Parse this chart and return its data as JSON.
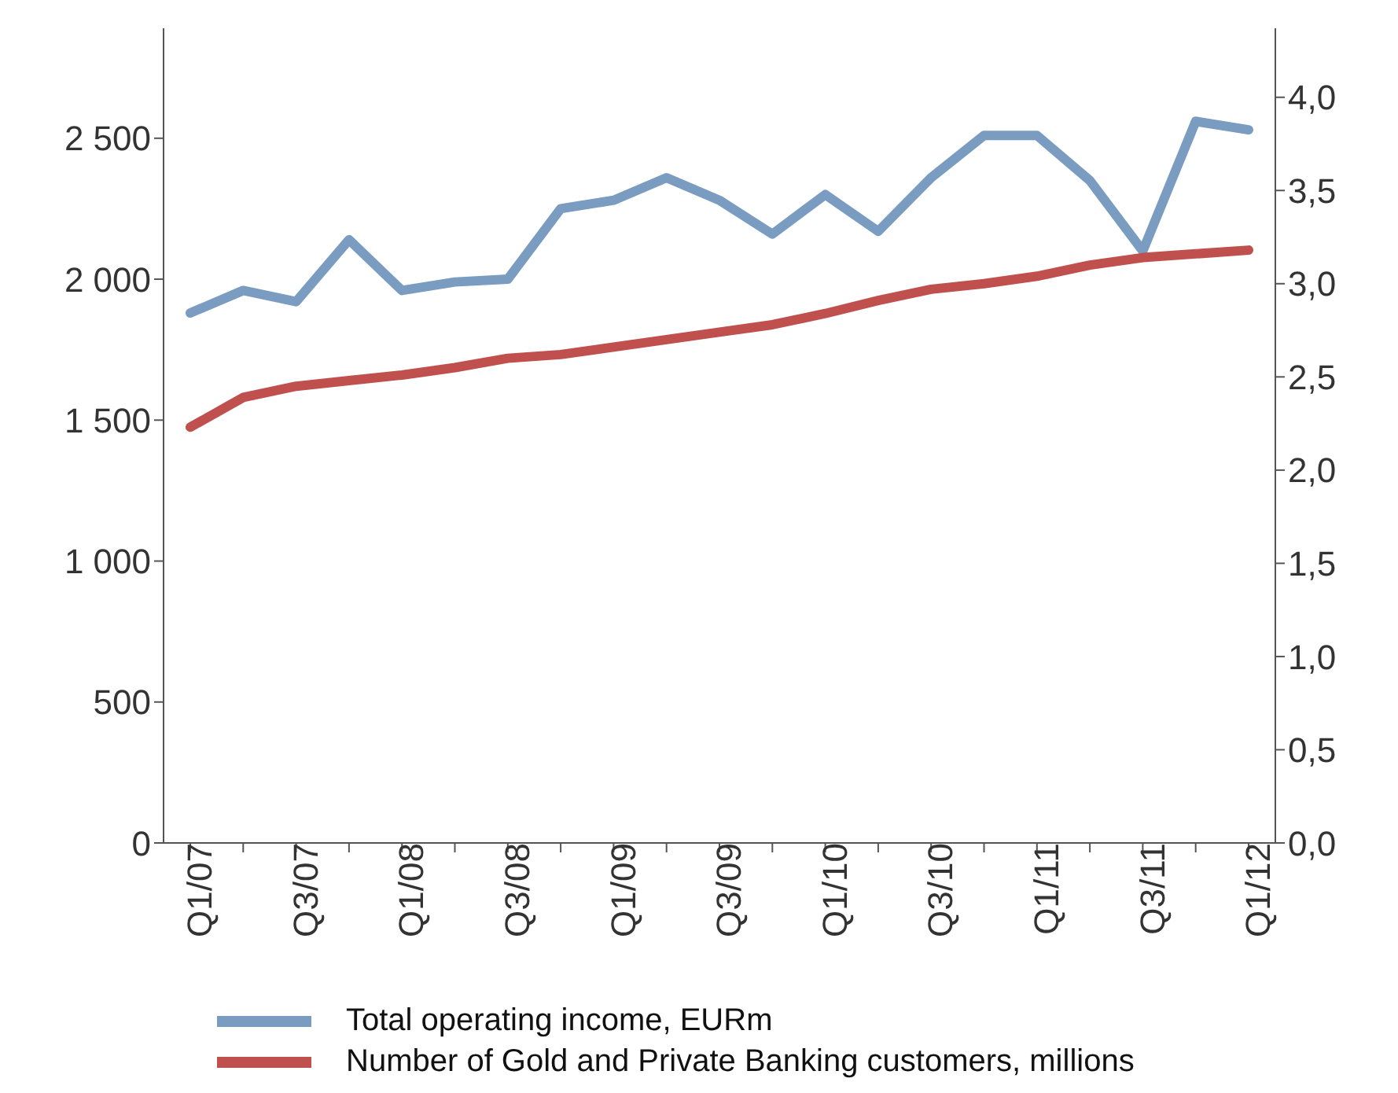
{
  "chart_data": {
    "type": "line",
    "categories": [
      "Q1/07",
      null,
      "Q3/07",
      null,
      "Q1/08",
      null,
      "Q3/08",
      null,
      "Q1/09",
      null,
      "Q3/09",
      null,
      "Q1/10",
      null,
      "Q3/10",
      null,
      "Q1/11",
      null,
      "Q3/11",
      null,
      "Q1/12"
    ],
    "series": [
      {
        "name": "Total operating income, EURm",
        "color": "#7a9cc0",
        "values": [
          1880,
          1960,
          1920,
          2140,
          1960,
          1990,
          2000,
          2250,
          2280,
          2360,
          2280,
          2160,
          2300,
          2170,
          2360,
          2510,
          2510,
          2350,
          2100,
          2560,
          2530
        ]
      },
      {
        "name": "Number of Gold and Private Banking customers, millions",
        "color": "#c0504d",
        "axis": "y2",
        "values": [
          2.23,
          2.39,
          2.45,
          2.48,
          2.51,
          2.55,
          2.6,
          2.62,
          2.66,
          2.7,
          2.74,
          2.78,
          2.84,
          2.91,
          2.97,
          3.0,
          3.04,
          3.1,
          3.14,
          3.16,
          3.18
        ]
      }
    ],
    "ylim": [
      0,
      2890
    ],
    "yticks": [
      0,
      500,
      {
        "value": 1000,
        "label": "1 000"
      },
      {
        "value": 1500,
        "label": "1 500"
      },
      {
        "value": 2000,
        "label": "2 000"
      },
      {
        "value": 2500,
        "label": "2 500"
      }
    ],
    "y2lim": [
      0,
      4.37
    ],
    "y2ticks": [
      {
        "value": 0,
        "label": "0,0"
      },
      {
        "value": 0.5,
        "label": "0,5"
      },
      {
        "value": 1,
        "label": "1,0"
      },
      {
        "value": 1.5,
        "label": "1,5"
      },
      {
        "value": 2,
        "label": "2,0"
      },
      {
        "value": 2.5,
        "label": "2,5"
      },
      {
        "value": 3,
        "label": "3,0"
      },
      {
        "value": 3.5,
        "label": "3,5"
      },
      {
        "value": 4,
        "label": "4,0"
      }
    ],
    "grid": false,
    "legend": "bottom",
    "marker": "none",
    "line_style": "solid"
  }
}
